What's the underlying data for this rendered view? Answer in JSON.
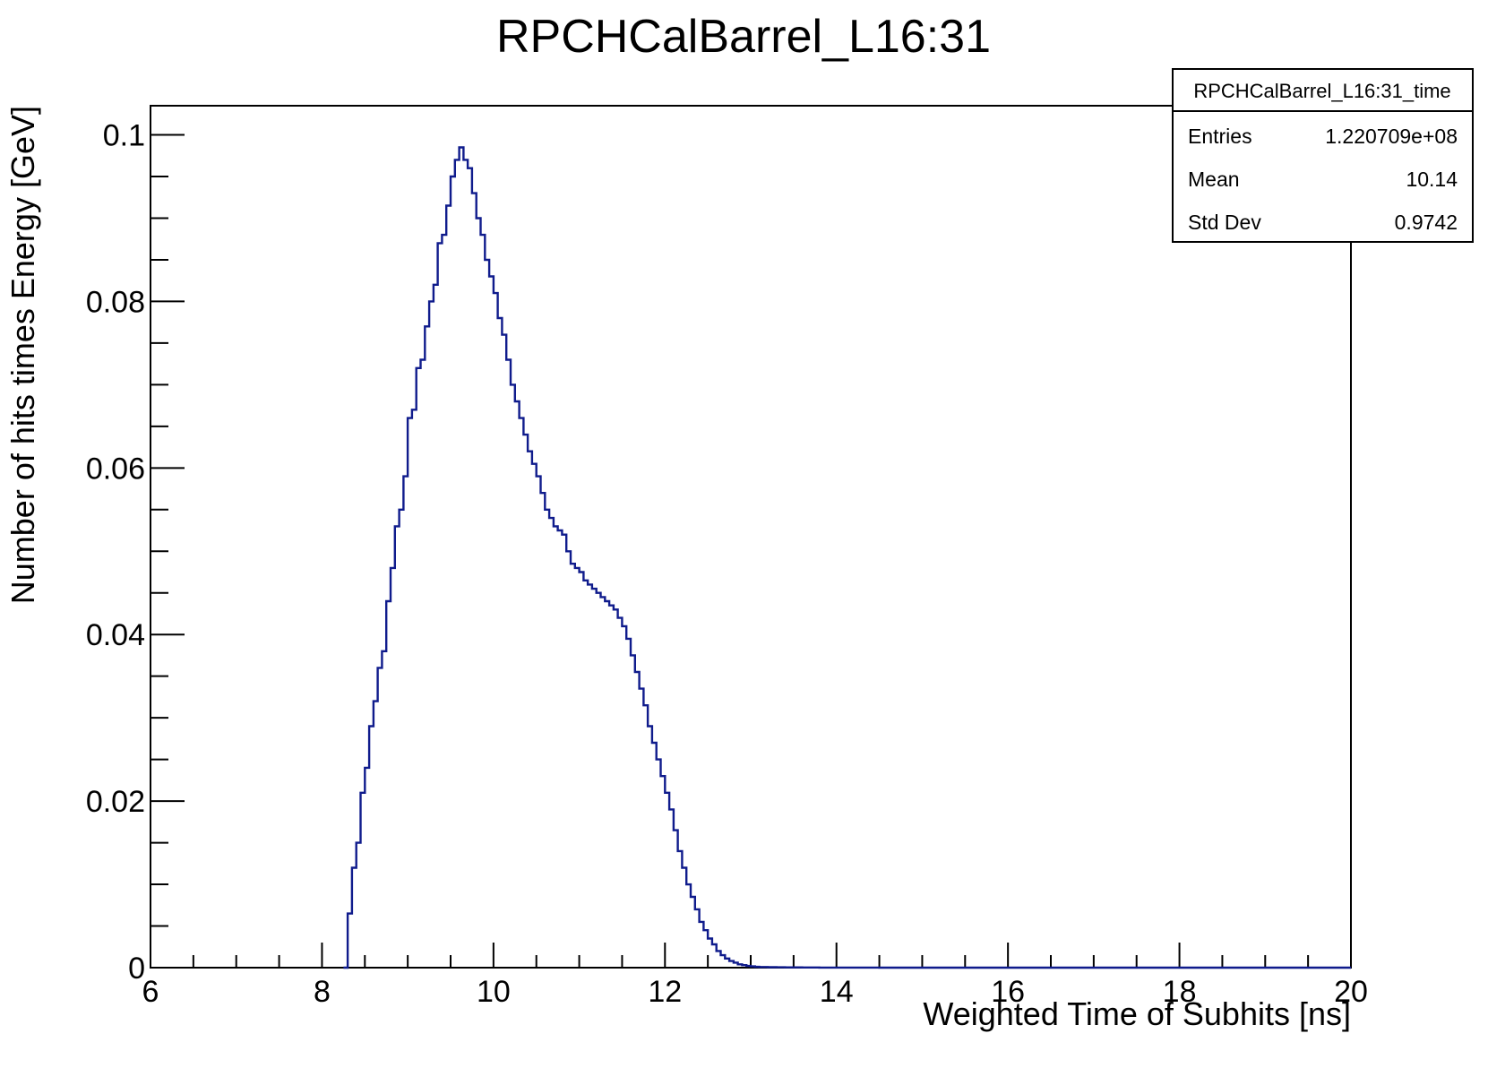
{
  "chart_data": {
    "type": "line",
    "title": "RPCHCalBarrel_L16:31",
    "xlabel": "Weighted Time of Subhits [ns]",
    "ylabel": "Number of hits times Energy [GeV]",
    "xlim": [
      6,
      20
    ],
    "ylim": [
      0,
      0.1035
    ],
    "x_ticks": [
      6,
      8,
      10,
      12,
      14,
      16,
      18,
      20
    ],
    "x_tick_labels": [
      "6",
      "8",
      "10",
      "12",
      "14",
      "16",
      "18",
      "20"
    ],
    "y_ticks": [
      0,
      0.02,
      0.04,
      0.06,
      0.08,
      0.1
    ],
    "y_tick_labels": [
      "0",
      "0.02",
      "0.04",
      "0.06",
      "0.08",
      "0.1"
    ],
    "grid": false,
    "legend_placement": "top-right",
    "line_color": "#0f1b8c",
    "series": [
      {
        "x": [
          8.25,
          8.3,
          8.35,
          8.4,
          8.45,
          8.5,
          8.55,
          8.6,
          8.65,
          8.7,
          8.75,
          8.8,
          8.85,
          8.9,
          8.95,
          9.0,
          9.05,
          9.1,
          9.15,
          9.2,
          9.25,
          9.3,
          9.35,
          9.4,
          9.45,
          9.5,
          9.55,
          9.6,
          9.65,
          9.7,
          9.75,
          9.8,
          9.85,
          9.9,
          9.95,
          10.0,
          10.05,
          10.1,
          10.15,
          10.2,
          10.25,
          10.3,
          10.35,
          10.4,
          10.45,
          10.5,
          10.55,
          10.6,
          10.65,
          10.7,
          10.75,
          10.8,
          10.85,
          10.9,
          10.95,
          11.0,
          11.05,
          11.1,
          11.15,
          11.2,
          11.25,
          11.3,
          11.35,
          11.4,
          11.45,
          11.5,
          11.55,
          11.6,
          11.65,
          11.7,
          11.75,
          11.8,
          11.85,
          11.9,
          11.95,
          12.0,
          12.05,
          12.1,
          12.15,
          12.2,
          12.25,
          12.3,
          12.35,
          12.4,
          12.45,
          12.5,
          12.55,
          12.6,
          12.65,
          12.7,
          12.75,
          12.8,
          12.85,
          12.9,
          12.95,
          13.0,
          13.05,
          13.1,
          13.2,
          13.3,
          13.4,
          13.6,
          13.8,
          14.0,
          14.5,
          15.0,
          16.0,
          17.0,
          18.0,
          19.0,
          20.0
        ],
        "values": [
          0.0,
          0.0065,
          0.012,
          0.015,
          0.021,
          0.024,
          0.029,
          0.032,
          0.036,
          0.038,
          0.044,
          0.048,
          0.053,
          0.055,
          0.059,
          0.066,
          0.067,
          0.072,
          0.073,
          0.077,
          0.08,
          0.082,
          0.087,
          0.088,
          0.0915,
          0.095,
          0.097,
          0.0985,
          0.097,
          0.096,
          0.093,
          0.09,
          0.088,
          0.085,
          0.083,
          0.081,
          0.078,
          0.076,
          0.073,
          0.07,
          0.068,
          0.066,
          0.064,
          0.062,
          0.0605,
          0.059,
          0.057,
          0.055,
          0.054,
          0.053,
          0.0525,
          0.052,
          0.05,
          0.0485,
          0.048,
          0.0475,
          0.0465,
          0.046,
          0.0455,
          0.045,
          0.0445,
          0.044,
          0.0435,
          0.043,
          0.042,
          0.041,
          0.0395,
          0.0375,
          0.0355,
          0.0335,
          0.0315,
          0.029,
          0.027,
          0.025,
          0.023,
          0.021,
          0.019,
          0.0165,
          0.014,
          0.012,
          0.01,
          0.0085,
          0.007,
          0.0055,
          0.0045,
          0.0035,
          0.0028,
          0.002,
          0.0015,
          0.0011,
          0.0008,
          0.0006,
          0.0004,
          0.0003,
          0.0002,
          0.00015,
          0.0001,
          8e-05,
          5e-05,
          4e-05,
          3e-05,
          2e-05,
          1e-05,
          1e-05,
          0.0,
          0.0,
          0.0,
          0.0,
          0.0,
          0.0,
          0.0
        ]
      }
    ],
    "stats_box": {
      "name": "RPCHCalBarrel_L16:31_time",
      "rows": [
        {
          "label": "Entries",
          "value": "1.220709e+08"
        },
        {
          "label": "Mean",
          "value": "10.14"
        },
        {
          "label": "Std Dev",
          "value": "0.9742"
        }
      ]
    }
  }
}
